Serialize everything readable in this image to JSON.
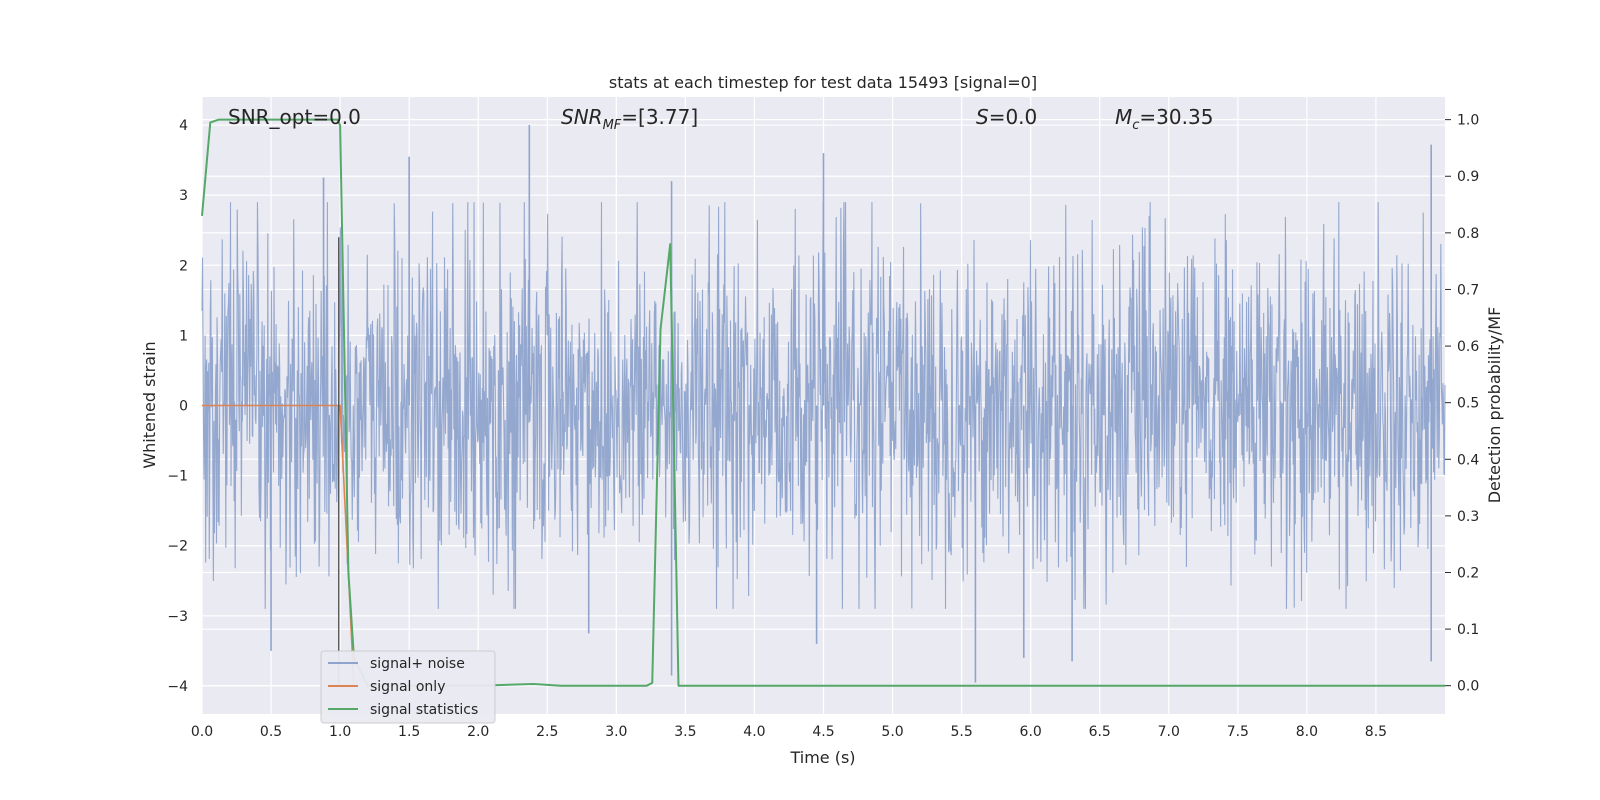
{
  "chart_data": {
    "type": "line",
    "title": "stats at each timestep for test data 15493 [signal=0]",
    "xlabel": "Time (s)",
    "ylabel": "Whitened strain",
    "ylabel_right": "Detection probability/MF",
    "xlim": [
      0,
      9.0
    ],
    "ylim": [
      -4.4,
      4.4
    ],
    "ylim_right": [
      -0.05,
      1.04
    ],
    "x_ticks": [
      "0.0",
      "0.5",
      "1.0",
      "1.5",
      "2.0",
      "2.5",
      "3.0",
      "3.5",
      "4.0",
      "4.5",
      "5.0",
      "5.5",
      "6.0",
      "6.5",
      "7.0",
      "7.5",
      "8.0",
      "8.5"
    ],
    "y_ticks": [
      "4",
      "3",
      "2",
      "1",
      "0",
      "−1",
      "−2",
      "−3",
      "−4"
    ],
    "y_ticks_right": [
      "1.0",
      "0.9",
      "0.8",
      "0.7",
      "0.6",
      "0.5",
      "0.4",
      "0.3",
      "0.2",
      "0.1",
      "0.0"
    ],
    "grid": true,
    "annotations": {
      "snr_opt": "SNR_opt=0.0",
      "snr_mf_main": "SNR",
      "snr_mf_sub": "MF",
      "snr_mf_value": "=[3.77]",
      "s_main": "S",
      "s_value": "=0.0",
      "mc_main": "M",
      "mc_sub": "c",
      "mc_value": "=30.35"
    },
    "legend": {
      "placement": "lower-left",
      "entries": [
        "signal+ noise",
        "signal only",
        "signal statistics"
      ]
    },
    "series": [
      {
        "name": "signal+ noise",
        "color": "#8fa4cc",
        "axis": "left",
        "style": "dense noise",
        "typical_envelope": [
          -1.6,
          1.6
        ],
        "peaks": [
          {
            "x": 0.88,
            "y": 3.25
          },
          {
            "x": 1.5,
            "y": 3.55
          },
          {
            "x": 2.37,
            "y": 4.0
          },
          {
            "x": 3.4,
            "y": 3.2
          },
          {
            "x": 4.5,
            "y": 3.6
          },
          {
            "x": 8.9,
            "y": 3.72
          },
          {
            "x": 0.5,
            "y": -3.5
          },
          {
            "x": 2.8,
            "y": -3.25
          },
          {
            "x": 3.4,
            "y": -3.85
          },
          {
            "x": 4.45,
            "y": -3.4
          },
          {
            "x": 5.6,
            "y": -3.95
          },
          {
            "x": 5.95,
            "y": -3.6
          },
          {
            "x": 6.3,
            "y": -3.65
          },
          {
            "x": 8.9,
            "y": -3.65
          }
        ]
      },
      {
        "name": "signal only",
        "color": "#dd8452",
        "axis": "left",
        "x": [
          0.0,
          1.0,
          1.1
        ],
        "y": [
          0.0,
          0.0,
          -4.0
        ]
      },
      {
        "name": "signal statistics",
        "color": "#55a868",
        "axis": "right",
        "x": [
          0.0,
          0.06,
          0.12,
          0.5,
          0.8,
          0.98,
          1.0,
          1.03,
          1.06,
          1.1,
          1.2,
          2.0,
          2.4,
          2.6,
          3.22,
          3.26,
          3.32,
          3.39,
          3.45,
          3.5,
          4.0,
          9.0
        ],
        "y": [
          0.83,
          0.995,
          1.0,
          1.0,
          1.0,
          1.0,
          0.99,
          0.6,
          0.2,
          0.05,
          0.0,
          0.0,
          0.003,
          0.0,
          0.0,
          0.005,
          0.63,
          0.78,
          0.0,
          0.0,
          0.0,
          0.0
        ]
      }
    ]
  }
}
